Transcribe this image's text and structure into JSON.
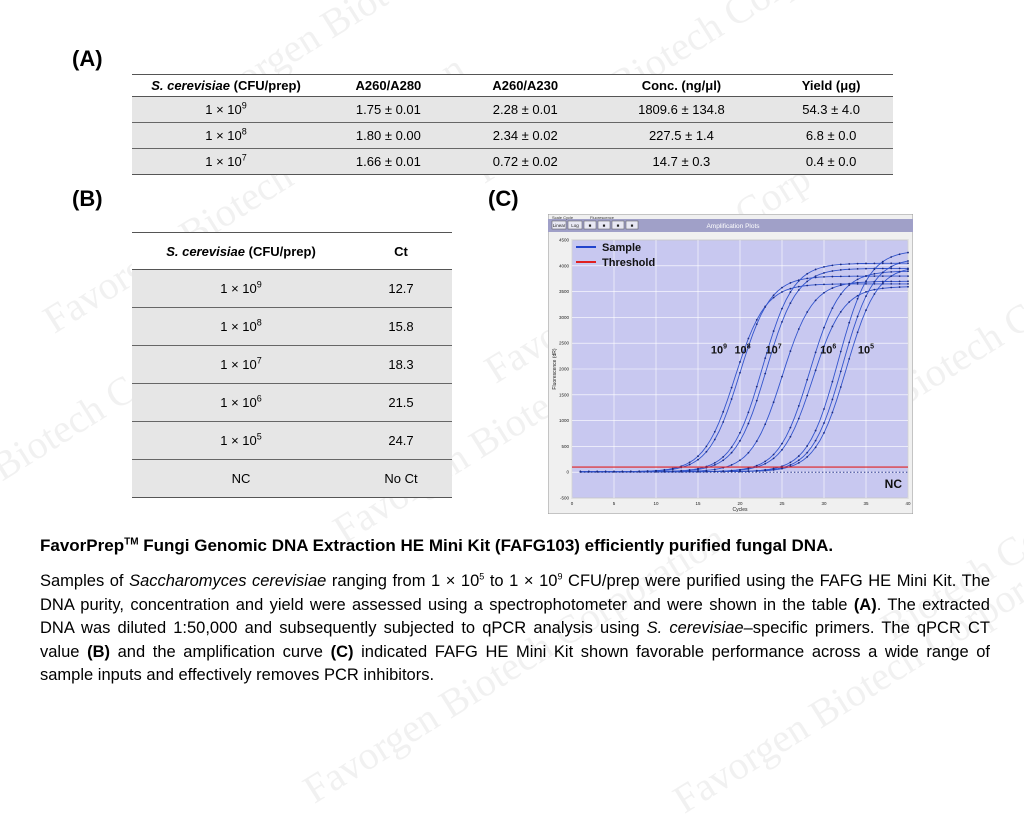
{
  "panels": {
    "a": "(A)",
    "b": "(B)",
    "c": "(C)"
  },
  "table_a": {
    "header": {
      "species": "S. cerevisiae",
      "unit": " (CFU/prep)",
      "c2": "A260/A280",
      "c3": "A260/A230",
      "c4": "Conc. (ng/μl)",
      "c5": "Yield (μg)"
    },
    "rows": [
      {
        "base": "1 × 10",
        "exp": "9",
        "c2": "1.75 ± 0.01",
        "c3": "2.28 ± 0.01",
        "c4": "1809.6 ± 134.8",
        "c5": "54.3 ± 4.0"
      },
      {
        "base": "1 × 10",
        "exp": "8",
        "c2": "1.80 ± 0.00",
        "c3": "2.34 ± 0.02",
        "c4": "227.5 ± 1.4",
        "c5": "6.8 ± 0.0"
      },
      {
        "base": "1 × 10",
        "exp": "7",
        "c2": "1.66 ± 0.01",
        "c3": "0.72 ± 0.02",
        "c4": "14.7 ± 0.3",
        "c5": "0.4 ± 0.0"
      }
    ]
  },
  "table_b": {
    "header": {
      "species": "S. cerevisiae",
      "unit": " (CFU/prep)",
      "ct": "Ct"
    },
    "rows": [
      {
        "base": "1 × 10",
        "exp": "9",
        "ct": "12.7"
      },
      {
        "base": "1 × 10",
        "exp": "8",
        "ct": "15.8"
      },
      {
        "base": "1 × 10",
        "exp": "7",
        "ct": "18.3"
      },
      {
        "base": "1 × 10",
        "exp": "6",
        "ct": "21.5"
      },
      {
        "base": "1 × 10",
        "exp": "5",
        "ct": "24.7"
      },
      {
        "base": "NC",
        "exp": "",
        "ct": "No Ct"
      }
    ]
  },
  "chart_data": {
    "type": "line",
    "title": "Amplification Plots",
    "toolbar": {
      "scale_label": "Scale Cycle",
      "fluor_label": "Fluorescence",
      "buttons": [
        "Linear",
        "Log",
        "■",
        "■",
        "■",
        "■"
      ]
    },
    "xlabel": "Cycles",
    "ylabel": "Fluorescence (dR)",
    "xlim": [
      0,
      40
    ],
    "ylim": [
      -500,
      4500
    ],
    "xticks": [
      0,
      5,
      10,
      15,
      20,
      25,
      30,
      35,
      40
    ],
    "yticks": [
      -500,
      0,
      500,
      1000,
      1500,
      2000,
      2500,
      3000,
      3500,
      4000,
      4500
    ],
    "threshold": 100,
    "legend": [
      {
        "name": "Sample",
        "color": "#2244cc"
      },
      {
        "name": "Threshold",
        "color": "#e02020"
      }
    ],
    "curve_labels": [
      {
        "base": "10",
        "exp": "9",
        "x": 17.5,
        "y": 2300
      },
      {
        "base": "10",
        "exp": "8",
        "x": 20.3,
        "y": 2300
      },
      {
        "base": "10",
        "exp": "7",
        "x": 24.0,
        "y": 2300
      },
      {
        "base": "10",
        "exp": "6",
        "x": 30.5,
        "y": 2300
      },
      {
        "base": "10",
        "exp": "5",
        "x": 35.0,
        "y": 2300
      }
    ],
    "nc_label": "NC",
    "series": [
      {
        "ct": 12.7,
        "plateau": 3650
      },
      {
        "ct": 13.2,
        "plateau": 3800
      },
      {
        "ct": 15.8,
        "plateau": 4050
      },
      {
        "ct": 16.3,
        "plateau": 3950
      },
      {
        "ct": 18.3,
        "plateau": 3700
      },
      {
        "ct": 21.5,
        "plateau": 3900
      },
      {
        "ct": 22.0,
        "plateau": 3600
      },
      {
        "ct": 24.7,
        "plateau": 4300
      },
      {
        "ct": 25.3,
        "plateau": 4150
      },
      {
        "ct": 25.8,
        "plateau": 4000
      }
    ],
    "colors": {
      "plot_bg": "#c8c8f0",
      "grid": "#ffffff",
      "series": "#3355cc",
      "threshold": "#e02020",
      "frame_bg": "#f0f0f0",
      "title_bar": "#a0a0c8"
    }
  },
  "caption": {
    "title_pre": "FavorPrep",
    "title_tm": "TM",
    "title_post": " Fungi Genomic DNA Extraction HE Mini Kit (FAFG103) efficiently purified fungal DNA.",
    "p1": "Samples of ",
    "p2": "Saccharomyces cerevisiae",
    "p3": " ranging from 1 × 10",
    "p4": "5",
    "p5": " to 1 × 10",
    "p6": "9",
    "p7": " CFU/prep were purified using the FAFG HE Mini Kit. The DNA purity, concentration and yield were assessed using a spectrophotometer and were shown in the table ",
    "p8": "(A)",
    "p9": ". The extracted DNA was diluted 1:50,000 and subsequently subjected to qPCR analysis using ",
    "p10": "S. cerevisiae",
    "p11": "–specific primers. The qPCR CT value ",
    "p12": "(B)",
    "p13": " and the amplification curve ",
    "p14": "(C)",
    "p15": " indicated FAFG HE Mini Kit shown favorable performance across a wide range of sample inputs and effectively removes PCR inhibitors."
  },
  "watermarks": [
    "Favorgen Biotech Corp",
    "Favorgen Biotech Corporation",
    "Favorgen Biotech Corporation",
    "Favorgen Biotech Corp",
    "Biotech Corporation",
    "Favorgen Biotech Corporation",
    "Favorgen Biotech Corporation",
    "Biotech Corporation",
    "Favorgen Biotech Corporation",
    "Favorgen Biotech Corporation"
  ]
}
